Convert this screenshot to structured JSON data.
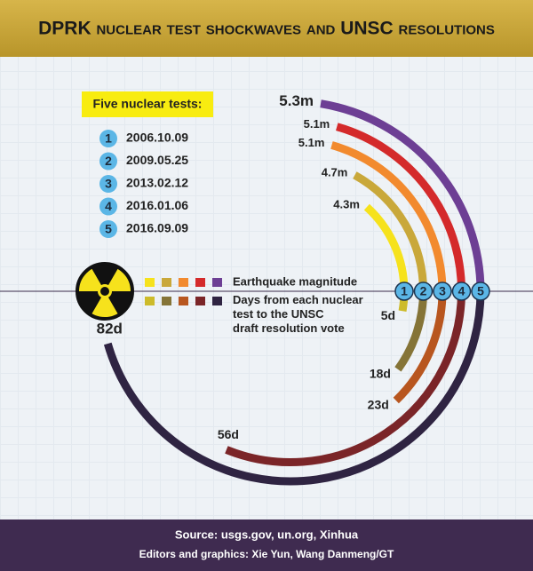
{
  "chart_data": {
    "type": "radial-arc",
    "title": "DPRK nuclear test shockwaves and UNSC resolutions",
    "legend_title": "Five nuclear tests:",
    "test_numbers": [
      "1",
      "2",
      "3",
      "4",
      "5"
    ],
    "categories": [
      "2006.10.09",
      "2009.05.25",
      "2013.02.12",
      "2016.01.06",
      "2016.09.09"
    ],
    "series": [
      {
        "name": "Earthquake magnitude",
        "values": [
          4.3,
          4.7,
          5.1,
          5.1,
          5.3
        ],
        "value_labels": [
          "4.3m",
          "4.7m",
          "5.1m",
          "5.1m",
          "5.3m"
        ],
        "colors": [
          "#f6e21c",
          "#c9a83a",
          "#f28a2e",
          "#d42a2b",
          "#6d3f94"
        ]
      },
      {
        "name": "Days from each nuclear test to the UNSC draft resolution vote",
        "values": [
          5,
          18,
          23,
          56,
          82
        ],
        "value_labels": [
          "5d",
          "18d",
          "23d",
          "56d",
          "82d"
        ],
        "colors": [
          "#cdbb2a",
          "#857437",
          "#b8561f",
          "#7b2528",
          "#2f2442"
        ]
      }
    ],
    "source": "Source: usgs.gov, un.org, Xinhua",
    "credits": "Editors and graphics: Xie Yun, Wang Danmeng/GT"
  }
}
